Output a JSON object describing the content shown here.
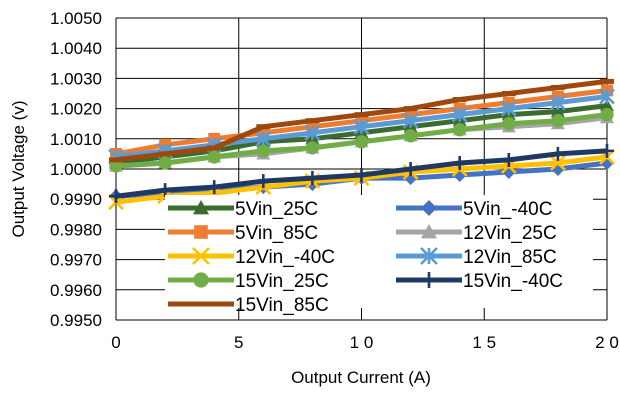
{
  "chart_data": {
    "type": "line",
    "xlabel": "Output Current (A)",
    "ylabel": "Output Voltage (v)",
    "xlim": [
      0,
      20
    ],
    "ylim": [
      0.995,
      1.005
    ],
    "xticks": [
      0,
      5,
      10,
      15,
      20
    ],
    "xtick_labels": [
      "0",
      "5",
      "1 0",
      "1 5",
      "2 0"
    ],
    "yticks": [
      0.995,
      0.996,
      0.997,
      0.998,
      0.999,
      1.0,
      1.001,
      1.002,
      1.003,
      1.004,
      1.005
    ],
    "ytick_labels": [
      "0.9950",
      "0.9960",
      "0.9970",
      "0.9980",
      "0.9990",
      "1.0000",
      "1.0010",
      "1.0020",
      "1.0030",
      "1.0040",
      "1.0050"
    ],
    "grid": true,
    "legend_position": "lower-center (inside plot)",
    "x": [
      0,
      2,
      4,
      6,
      8,
      10,
      12,
      14,
      16,
      18,
      20
    ],
    "series": [
      {
        "name": "5Vin_25C",
        "color": "#3b6b2f",
        "marker": "triangle",
        "values": [
          1.0002,
          1.0004,
          1.0006,
          1.0009,
          1.001,
          1.0012,
          1.0014,
          1.0016,
          1.0018,
          1.0019,
          1.0021
        ]
      },
      {
        "name": "5Vin_-40C",
        "color": "#4472c4",
        "marker": "diamond",
        "values": [
          0.9991,
          0.9992,
          0.9993,
          0.9994,
          0.9995,
          0.9997,
          0.9997,
          0.9998,
          0.9999,
          1.0,
          1.0002
        ]
      },
      {
        "name": "5Vin_85C",
        "color": "#ed7d31",
        "marker": "square",
        "values": [
          1.0005,
          1.0008,
          1.001,
          1.0012,
          1.0014,
          1.0016,
          1.0018,
          1.002,
          1.0022,
          1.0024,
          1.0026
        ]
      },
      {
        "name": "12Vin_25C",
        "color": "#a5a5a5",
        "marker": "triangle",
        "values": [
          1.0001,
          1.0002,
          1.0004,
          1.0005,
          1.0007,
          1.0009,
          1.0011,
          1.0013,
          1.0014,
          1.0015,
          1.0017
        ]
      },
      {
        "name": "12Vin_-40C",
        "color": "#ffc000",
        "marker": "x",
        "values": [
          0.9989,
          0.9991,
          0.9992,
          0.9994,
          0.9996,
          0.9997,
          0.9999,
          1.0,
          1.0001,
          1.0002,
          1.0004
        ]
      },
      {
        "name": "12Vin_85C",
        "color": "#5b9bd5",
        "marker": "asterisk",
        "values": [
          1.0004,
          1.0006,
          1.0008,
          1.001,
          1.0012,
          1.0014,
          1.0016,
          1.0018,
          1.002,
          1.0022,
          1.0024
        ]
      },
      {
        "name": "15Vin_25C",
        "color": "#70ad47",
        "marker": "circle",
        "values": [
          1.0001,
          1.0002,
          1.0004,
          1.0006,
          1.0007,
          1.0009,
          1.0011,
          1.0013,
          1.0015,
          1.0016,
          1.0018
        ]
      },
      {
        "name": "15Vin_-40C",
        "color": "#203864",
        "marker": "plus",
        "values": [
          0.9991,
          0.9993,
          0.9994,
          0.9996,
          0.9997,
          0.9998,
          1.0,
          1.0002,
          1.0003,
          1.0005,
          1.0006
        ]
      },
      {
        "name": "15Vin_85C",
        "color": "#9e480e",
        "marker": "dash",
        "values": [
          1.0003,
          1.0005,
          1.0007,
          1.0014,
          1.0016,
          1.0018,
          1.002,
          1.0023,
          1.0025,
          1.0027,
          1.0029
        ]
      }
    ]
  }
}
